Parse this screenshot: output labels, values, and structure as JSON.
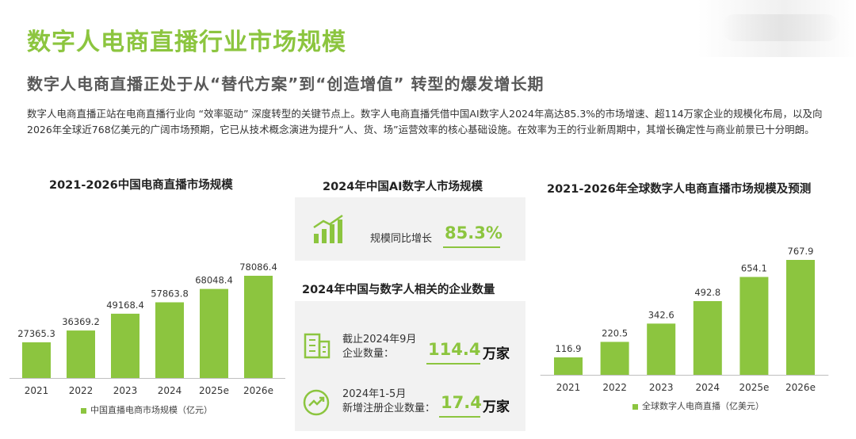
{
  "header": {
    "title": "数字人电商直播行业市场规模",
    "subtitle": "数字人电商直播正处于从“替代方案”到“创造增值” 转型的爆发增长期",
    "description": "数字人电商直播正站在电商直播行业向 “效率驱动” 深度转型的关键节点上。数字人电商直播凭借中国AI数字人2024年高达85.3%的市场增速、超114万家企业的规模化布局，以及向2026年全球近768亿美元的广阔市场预期，它已从技术概念演进为提升“人、货、场”运营效率的核心基础设施。在效率为王的行业新周期中，其增长确定性与商业前景已十分明朗。"
  },
  "middle": {
    "ai_title": "2024年中国AI数字人市场规模",
    "growth_label": "规模同比增长",
    "growth_value": "85.3%",
    "enterprise_title": "2024年中国与数字人相关的企业数量",
    "ent1_label_line1": "截止2024年9月",
    "ent1_label_line2": "企业数量：",
    "ent1_value": "114.4",
    "ent1_unit": "万家",
    "ent2_label_line1": "2024年1-5月",
    "ent2_label_line2": "新增注册企业数量：",
    "ent2_value": "17.4",
    "ent2_unit": "万家",
    "icons": [
      "growth-chart-icon",
      "building-icon",
      "trend-up-icon"
    ]
  },
  "colors": {
    "accent": "#8cc53f",
    "bar": "#8cc53f",
    "panel": "#f2f2f2"
  },
  "chart_data": [
    {
      "type": "bar",
      "title": "2021-2026中国电商直播市场规模",
      "categories": [
        "2021",
        "2022",
        "2023",
        "2024",
        "2025e",
        "2026e"
      ],
      "series": [
        {
          "name": "中国直播电商市场规模（亿元）",
          "values": [
            27365.3,
            36369.2,
            49168.4,
            57863.8,
            68048.4,
            78086.4
          ],
          "labels": [
            "27365.3",
            "36369.2",
            "49168.4",
            "57863.8",
            "68048.4",
            "78086.4"
          ]
        }
      ],
      "legend": "bottom",
      "grid": false
    },
    {
      "type": "bar",
      "title": "2021-2026年全球数字人电商直播市场规模及预测",
      "categories": [
        "2021",
        "2022",
        "2023",
        "2024",
        "2025e",
        "2026e"
      ],
      "series": [
        {
          "name": "全球数字人电商直播（亿美元）",
          "values": [
            116.9,
            220.5,
            342.6,
            492.8,
            654.1,
            767.9
          ],
          "labels": [
            "116.9",
            "220.5",
            "342.6",
            "492.8",
            "654.1",
            "767.9"
          ]
        }
      ],
      "legend": "bottom",
      "grid": false
    }
  ]
}
